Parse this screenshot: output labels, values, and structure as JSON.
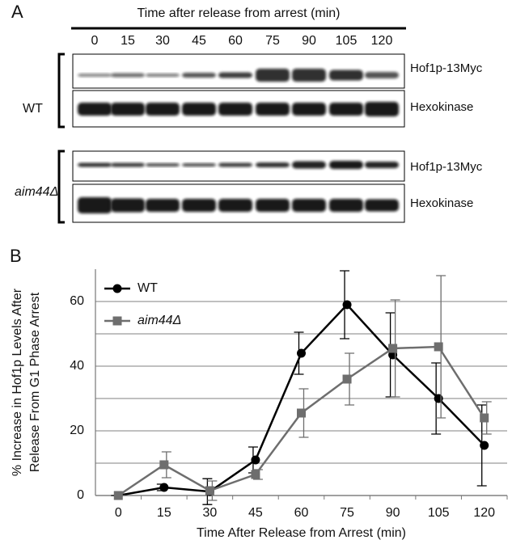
{
  "panel_a": {
    "label": "A",
    "header": "Time after release from arrest (min)",
    "timepoints": [
      "0",
      "15",
      "30",
      "45",
      "60",
      "75",
      "90",
      "105",
      "120"
    ],
    "strains": [
      {
        "name": "WT",
        "rows": [
          "Hof1p-13Myc",
          "Hexokinase"
        ]
      },
      {
        "name": "aim44Δ",
        "rows": [
          "Hof1p-13Myc",
          "Hexokinase"
        ]
      }
    ]
  },
  "chart_data": {
    "type": "line",
    "panel_label": "B",
    "xlabel": "Time After Release from Arrest (min)",
    "ylabel": [
      "% Increase in Hof1p Levels After",
      "Release From G1 Phase Arrest"
    ],
    "categories": [
      "0",
      "15",
      "30",
      "45",
      "60",
      "75",
      "90",
      "105",
      "120"
    ],
    "series": [
      {
        "name": "WT",
        "color": "#000000",
        "marker": "circle",
        "values": [
          0,
          2.5,
          1.2,
          11,
          44,
          59,
          43.5,
          30,
          15.5
        ],
        "errors": [
          0,
          1,
          4,
          4,
          6.5,
          10.5,
          13,
          11,
          12.5
        ]
      },
      {
        "name": "aim44Δ",
        "color": "#6e6e6e",
        "marker": "square",
        "values": [
          0,
          9.5,
          1.5,
          6.5,
          25.5,
          36,
          45.5,
          46,
          24
        ],
        "errors": [
          0,
          4,
          3,
          1.5,
          7.5,
          8,
          15,
          22,
          5
        ]
      }
    ],
    "ylim": [
      0,
      70
    ],
    "yticks": [
      0,
      20,
      40,
      60
    ],
    "minor_yticks": [
      10,
      30,
      50
    ],
    "grid": true,
    "legend": "upper left"
  }
}
